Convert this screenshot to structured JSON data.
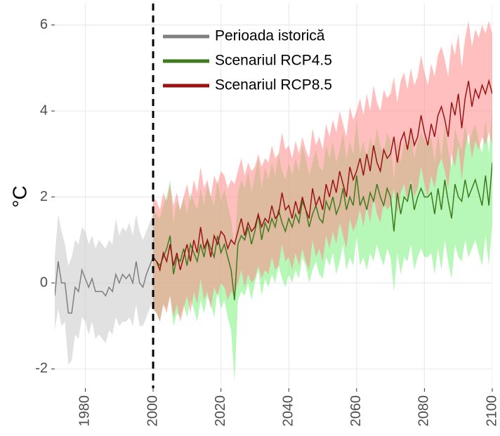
{
  "chart_data": {
    "type": "line",
    "y_label": "°C",
    "xlim": [
      1971,
      2100
    ],
    "ylim": [
      -2.45,
      6.5
    ],
    "xticks": [
      1980,
      2000,
      2020,
      2040,
      2060,
      2080,
      2100
    ],
    "yticks": [
      -2,
      0,
      2,
      4,
      6
    ],
    "grid": true,
    "vline": 2000,
    "legend_position": "top-left",
    "series": [
      {
        "name": "Perioada istorică",
        "color": "#7f7f7f",
        "band_color": "#c8c8c8",
        "x": [
          1971,
          1972,
          1973,
          1974,
          1975,
          1976,
          1977,
          1978,
          1979,
          1980,
          1981,
          1982,
          1983,
          1984,
          1985,
          1986,
          1987,
          1988,
          1989,
          1990,
          1991,
          1992,
          1993,
          1994,
          1995,
          1996,
          1997,
          1998,
          1999,
          2000
        ],
        "values": [
          -0.3,
          0.5,
          0.0,
          0.0,
          -0.7,
          -0.7,
          -0.1,
          -0.2,
          0.3,
          0.1,
          -0.1,
          0.1,
          -0.2,
          -0.2,
          -0.2,
          -0.3,
          -0.1,
          -0.2,
          0.2,
          0.0,
          0.2,
          0.1,
          0.2,
          0.0,
          0.5,
          0.0,
          -0.1,
          0.2,
          0.4,
          0.6
        ],
        "lower": [
          -1.1,
          -0.6,
          -1.0,
          -0.9,
          -1.9,
          -1.8,
          -1.2,
          -1.3,
          -0.8,
          -0.9,
          -1.2,
          -0.9,
          -1.3,
          -1.2,
          -1.3,
          -1.4,
          -1.1,
          -1.2,
          -0.8,
          -1.0,
          -0.9,
          -0.9,
          -0.8,
          -1.0,
          -0.5,
          -1.0,
          -1.0,
          -0.8,
          -0.6,
          -0.4
        ],
        "upper": [
          0.6,
          1.6,
          1.2,
          0.9,
          0.4,
          0.6,
          1.0,
          0.9,
          1.3,
          1.2,
          0.9,
          1.1,
          0.8,
          1.0,
          0.9,
          0.8,
          1.0,
          0.9,
          1.5,
          1.1,
          1.3,
          1.2,
          1.4,
          1.1,
          1.6,
          1.2,
          1.0,
          1.2,
          1.4,
          1.6
        ]
      },
      {
        "name": "Scenariul RCP4.5",
        "color": "#3f7a1f",
        "band_color": "#7cf07c",
        "x": [
          2000,
          2001,
          2002,
          2003,
          2004,
          2005,
          2006,
          2007,
          2008,
          2009,
          2010,
          2011,
          2012,
          2013,
          2014,
          2015,
          2016,
          2017,
          2018,
          2019,
          2020,
          2021,
          2022,
          2023,
          2024,
          2025,
          2026,
          2027,
          2028,
          2029,
          2030,
          2031,
          2032,
          2033,
          2034,
          2035,
          2036,
          2037,
          2038,
          2039,
          2040,
          2041,
          2042,
          2043,
          2044,
          2045,
          2046,
          2047,
          2048,
          2049,
          2050,
          2051,
          2052,
          2053,
          2054,
          2055,
          2056,
          2057,
          2058,
          2059,
          2060,
          2061,
          2062,
          2063,
          2064,
          2065,
          2066,
          2067,
          2068,
          2069,
          2070,
          2071,
          2072,
          2073,
          2074,
          2075,
          2076,
          2077,
          2078,
          2079,
          2080,
          2081,
          2082,
          2083,
          2084,
          2085,
          2086,
          2087,
          2088,
          2089,
          2090,
          2091,
          2092,
          2093,
          2094,
          2095,
          2096,
          2097,
          2098,
          2099,
          2100
        ],
        "values": [
          0.6,
          0.5,
          0.4,
          0.6,
          0.8,
          1.1,
          0.2,
          0.6,
          0.5,
          0.8,
          0.4,
          0.9,
          0.7,
          0.5,
          0.9,
          0.6,
          1.0,
          0.8,
          0.6,
          1.1,
          0.7,
          0.9,
          0.6,
          0.3,
          -0.4,
          0.9,
          1.1,
          1.0,
          1.3,
          0.9,
          1.2,
          1.6,
          1.0,
          1.4,
          1.2,
          1.5,
          1.3,
          1.7,
          1.4,
          1.2,
          1.5,
          1.3,
          1.6,
          1.4,
          1.9,
          1.7,
          1.3,
          1.6,
          1.8,
          1.5,
          1.4,
          1.9,
          1.7,
          2.0,
          1.6,
          1.8,
          2.2,
          1.7,
          2.0,
          1.8,
          2.5,
          1.8,
          2.0,
          1.7,
          2.1,
          1.9,
          2.3,
          2.0,
          1.8,
          2.2,
          2.0,
          1.2,
          2.1,
          1.6,
          2.0,
          1.9,
          2.3,
          1.7,
          2.0,
          2.2,
          2.0,
          2.0,
          2.1,
          1.6,
          2.2,
          1.7,
          2.4,
          1.9,
          1.5,
          2.3,
          2.0,
          1.9,
          2.4,
          2.0,
          2.2,
          2.4,
          2.1,
          1.8,
          2.5,
          1.8,
          2.8
        ],
        "lower": [
          -0.6,
          -0.7,
          -0.9,
          -0.5,
          -0.6,
          -0.3,
          -1.0,
          -0.7,
          -0.8,
          -0.5,
          -0.8,
          -0.4,
          -0.6,
          -0.9,
          -0.4,
          -0.7,
          -0.3,
          -0.5,
          -0.8,
          -0.2,
          -0.6,
          -0.4,
          -0.8,
          -1.1,
          -2.3,
          -0.4,
          -0.2,
          -0.3,
          0.0,
          -0.4,
          0.0,
          0.3,
          -0.3,
          0.1,
          -0.1,
          0.2,
          0.0,
          0.4,
          0.1,
          -0.1,
          0.2,
          0.0,
          0.3,
          0.1,
          0.6,
          0.4,
          0.0,
          0.3,
          0.5,
          0.2,
          0.1,
          0.6,
          0.4,
          0.7,
          0.2,
          0.5,
          0.9,
          0.3,
          0.6,
          0.4,
          1.1,
          0.4,
          0.6,
          0.3,
          0.7,
          0.5,
          0.9,
          0.6,
          0.4,
          0.8,
          0.6,
          -0.2,
          0.7,
          0.2,
          0.6,
          0.5,
          0.9,
          0.3,
          0.6,
          0.8,
          0.6,
          0.6,
          0.7,
          0.2,
          0.8,
          0.3,
          1.0,
          0.5,
          0.1,
          0.9,
          0.6,
          0.5,
          1.0,
          0.6,
          0.8,
          1.0,
          0.7,
          0.4,
          1.1,
          0.4,
          1.4
        ],
        "upper": [
          1.7,
          1.6,
          1.5,
          1.8,
          2.0,
          2.4,
          1.4,
          1.9,
          1.7,
          2.0,
          1.6,
          2.1,
          1.9,
          1.7,
          2.2,
          1.8,
          2.3,
          2.0,
          1.8,
          2.4,
          1.9,
          2.2,
          1.8,
          1.5,
          0.8,
          2.1,
          2.4,
          2.2,
          2.6,
          2.1,
          2.5,
          2.9,
          2.2,
          2.7,
          2.4,
          2.8,
          2.5,
          3.0,
          2.6,
          2.4,
          2.8,
          2.5,
          2.9,
          2.6,
          3.2,
          2.9,
          2.5,
          2.8,
          3.1,
          2.7,
          2.6,
          3.2,
          2.9,
          3.3,
          2.8,
          3.1,
          3.5,
          2.9,
          3.3,
          3.0,
          3.8,
          3.0,
          3.3,
          2.9,
          3.4,
          3.1,
          3.6,
          3.2,
          3.0,
          3.5,
          3.3,
          2.4,
          3.4,
          2.8,
          3.3,
          3.1,
          3.6,
          2.9,
          3.3,
          3.5,
          3.3,
          3.2,
          3.4,
          2.8,
          3.5,
          2.9,
          3.7,
          3.1,
          2.7,
          3.6,
          3.3,
          3.1,
          3.7,
          3.2,
          3.5,
          3.7,
          3.3,
          3.0,
          3.8,
          3.0,
          4.1
        ]
      },
      {
        "name": "Scenariul RCP8.5",
        "color": "#9b1212",
        "band_color": "#ff8a8a",
        "x": [
          2000,
          2001,
          2002,
          2003,
          2004,
          2005,
          2006,
          2007,
          2008,
          2009,
          2010,
          2011,
          2012,
          2013,
          2014,
          2015,
          2016,
          2017,
          2018,
          2019,
          2020,
          2021,
          2022,
          2023,
          2024,
          2025,
          2026,
          2027,
          2028,
          2029,
          2030,
          2031,
          2032,
          2033,
          2034,
          2035,
          2036,
          2037,
          2038,
          2039,
          2040,
          2041,
          2042,
          2043,
          2044,
          2045,
          2046,
          2047,
          2048,
          2049,
          2050,
          2051,
          2052,
          2053,
          2054,
          2055,
          2056,
          2057,
          2058,
          2059,
          2060,
          2061,
          2062,
          2063,
          2064,
          2065,
          2066,
          2067,
          2068,
          2069,
          2070,
          2071,
          2072,
          2073,
          2074,
          2075,
          2076,
          2077,
          2078,
          2079,
          2080,
          2081,
          2082,
          2083,
          2084,
          2085,
          2086,
          2087,
          2088,
          2089,
          2090,
          2091,
          2092,
          2093,
          2094,
          2095,
          2096,
          2097,
          2098,
          2099,
          2100
        ],
        "values": [
          0.6,
          0.5,
          0.3,
          0.7,
          0.5,
          0.9,
          0.4,
          0.7,
          0.3,
          0.6,
          0.9,
          0.5,
          1.0,
          0.7,
          1.3,
          0.8,
          1.0,
          0.6,
          1.1,
          0.9,
          1.2,
          1.1,
          0.8,
          1.0,
          0.9,
          1.2,
          1.5,
          1.1,
          1.4,
          1.2,
          1.3,
          1.6,
          1.3,
          1.5,
          1.4,
          1.8,
          1.5,
          1.6,
          2.1,
          1.7,
          1.8,
          1.5,
          1.9,
          1.6,
          2.0,
          1.7,
          1.5,
          2.2,
          1.8,
          2.0,
          1.7,
          2.3,
          2.0,
          2.4,
          2.1,
          2.6,
          2.3,
          2.0,
          2.7,
          2.4,
          2.6,
          2.9,
          2.5,
          3.0,
          2.6,
          3.2,
          2.8,
          2.6,
          3.1,
          2.9,
          3.0,
          3.4,
          2.8,
          3.3,
          3.5,
          3.1,
          3.6,
          3.2,
          3.4,
          3.9,
          3.5,
          3.2,
          3.7,
          3.4,
          3.9,
          4.1,
          3.8,
          3.4,
          4.2,
          3.9,
          4.4,
          3.6,
          4.3,
          4.7,
          4.1,
          4.5,
          4.3,
          4.6,
          4.4,
          4.7,
          4.4
        ],
        "lower": [
          -0.6,
          -0.7,
          -0.9,
          -0.5,
          -0.7,
          -0.3,
          -0.8,
          -0.5,
          -0.9,
          -0.6,
          -0.3,
          -0.7,
          -0.2,
          -0.5,
          0.1,
          -0.4,
          -0.2,
          -0.6,
          -0.1,
          -0.3,
          0.0,
          -0.1,
          -0.4,
          -0.2,
          -0.3,
          0.0,
          0.3,
          -0.1,
          0.2,
          0.0,
          0.1,
          0.4,
          0.1,
          0.3,
          0.2,
          0.6,
          0.3,
          0.4,
          0.9,
          0.5,
          0.6,
          0.3,
          0.7,
          0.4,
          0.8,
          0.5,
          0.3,
          1.0,
          0.6,
          0.8,
          0.5,
          1.1,
          0.8,
          1.2,
          0.9,
          1.4,
          1.1,
          0.8,
          1.5,
          1.2,
          1.4,
          1.7,
          1.3,
          1.8,
          1.4,
          2.0,
          1.6,
          1.4,
          1.9,
          1.7,
          1.8,
          2.2,
          1.6,
          2.1,
          2.3,
          1.9,
          2.4,
          2.0,
          2.2,
          2.7,
          2.3,
          2.0,
          2.5,
          2.2,
          2.7,
          2.9,
          2.6,
          2.2,
          3.0,
          2.7,
          3.2,
          2.4,
          3.1,
          3.5,
          2.9,
          3.3,
          3.1,
          3.4,
          3.2,
          3.5,
          3.2
        ],
        "upper": [
          2.0,
          1.9,
          1.7,
          2.1,
          1.9,
          2.3,
          1.8,
          2.1,
          1.7,
          2.0,
          2.3,
          1.9,
          2.4,
          2.1,
          2.7,
          2.2,
          2.4,
          2.0,
          2.5,
          2.3,
          2.6,
          2.5,
          2.2,
          2.4,
          2.3,
          2.6,
          2.9,
          2.5,
          2.8,
          2.6,
          2.7,
          3.0,
          2.7,
          2.9,
          2.8,
          3.2,
          2.9,
          3.0,
          3.5,
          3.1,
          3.2,
          2.9,
          3.3,
          3.0,
          3.4,
          3.1,
          2.9,
          3.6,
          3.2,
          3.4,
          3.1,
          3.7,
          3.4,
          3.8,
          3.5,
          4.0,
          3.7,
          3.4,
          4.1,
          3.8,
          4.0,
          4.3,
          3.9,
          4.4,
          4.0,
          4.6,
          4.2,
          4.0,
          4.5,
          4.3,
          4.4,
          4.8,
          4.2,
          4.7,
          4.9,
          4.5,
          5.0,
          4.6,
          4.8,
          5.3,
          4.9,
          4.6,
          5.1,
          4.8,
          5.3,
          5.5,
          5.2,
          4.8,
          5.6,
          5.3,
          5.8,
          5.0,
          5.7,
          6.1,
          5.5,
          5.9,
          5.7,
          6.0,
          5.8,
          6.1,
          5.8
        ]
      }
    ]
  }
}
